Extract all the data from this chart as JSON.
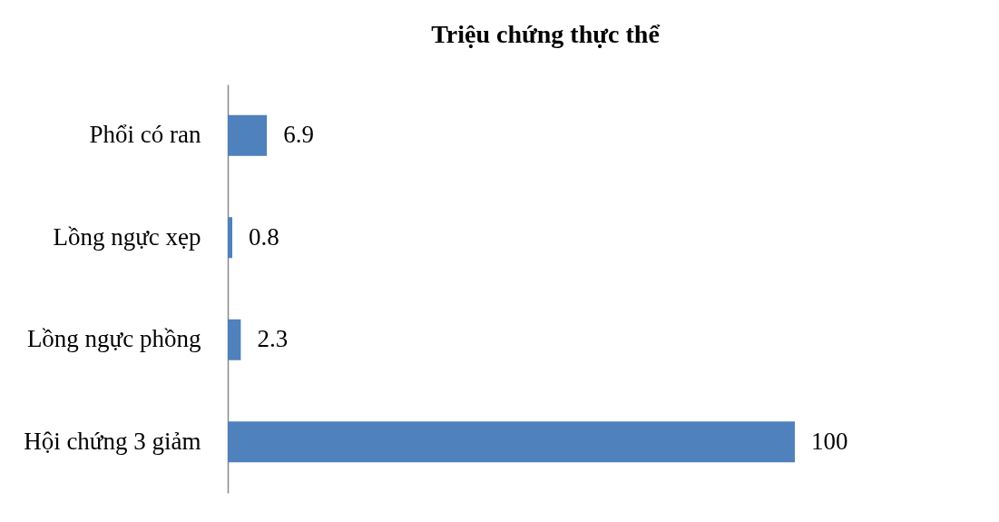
{
  "chart_data": {
    "type": "bar",
    "orientation": "horizontal",
    "title": "Triệu chứng thực thể",
    "categories": [
      "Phổi có ran",
      "Lồng ngực xẹp",
      "Lồng ngực phồng",
      "Hội chứng 3 giảm"
    ],
    "values": [
      6.9,
      0.8,
      2.3,
      100
    ],
    "color": "#4f81bd",
    "data_labels": true
  }
}
